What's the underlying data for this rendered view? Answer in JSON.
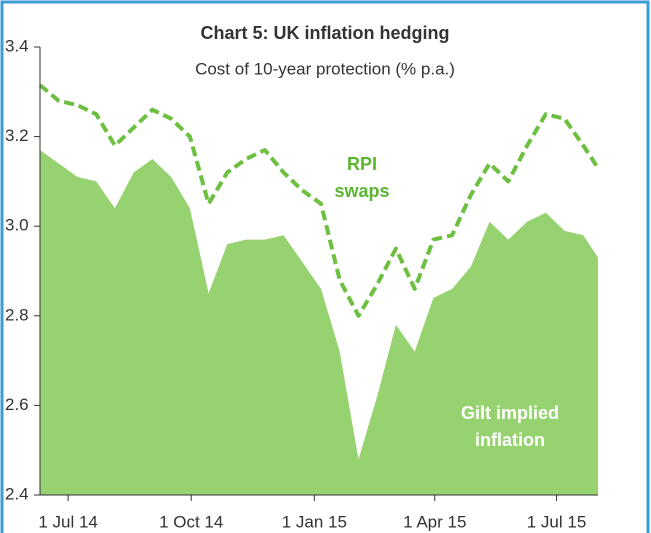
{
  "chart_data": {
    "type": "area_line",
    "title": "Chart 5: UK inflation hedging",
    "subtitle": "Cost of 10-year protection (% p.a.)",
    "x": [
      "2014-06-10",
      "2014-06-24",
      "2014-07-08",
      "2014-07-22",
      "2014-08-05",
      "2014-08-19",
      "2014-09-02",
      "2014-09-16",
      "2014-09-30",
      "2014-10-14",
      "2014-10-28",
      "2014-11-11",
      "2014-11-25",
      "2014-12-09",
      "2014-12-23",
      "2015-01-06",
      "2015-01-20",
      "2015-02-03",
      "2015-02-17",
      "2015-03-03",
      "2015-03-17",
      "2015-03-31",
      "2015-04-14",
      "2015-04-28",
      "2015-05-12",
      "2015-05-26",
      "2015-06-09",
      "2015-06-23",
      "2015-07-07",
      "2015-07-21",
      "2015-08-01"
    ],
    "series": [
      {
        "kind": "area",
        "color": "#97d271",
        "values": [
          3.17,
          3.14,
          3.11,
          3.1,
          3.04,
          3.12,
          3.15,
          3.11,
          3.04,
          2.85,
          2.96,
          2.97,
          2.97,
          2.98,
          2.92,
          2.86,
          2.72,
          2.48,
          2.62,
          2.78,
          2.72,
          2.84,
          2.86,
          2.91,
          3.01,
          2.97,
          3.01,
          3.03,
          2.99,
          2.98,
          2.93
        ]
      },
      {
        "kind": "dashed-line",
        "color": "#6cbf3f",
        "values": [
          3.315,
          3.28,
          3.27,
          3.25,
          3.18,
          3.22,
          3.26,
          3.24,
          3.2,
          3.05,
          3.12,
          3.15,
          3.17,
          3.12,
          3.08,
          3.05,
          2.88,
          2.8,
          2.87,
          2.95,
          2.86,
          2.97,
          2.98,
          3.07,
          3.14,
          3.1,
          3.18,
          3.25,
          3.24,
          3.18,
          3.13
        ]
      }
    ],
    "annotations": [
      {
        "lines": [
          "RPI",
          "swaps"
        ],
        "color": "#5cb531"
      },
      {
        "lines": [
          "Gilt implied",
          "inflation"
        ],
        "color": "#ffffff"
      }
    ],
    "xlim": [
      "2014-06-10",
      "2015-08-01"
    ],
    "xticks": [
      {
        "value": "2014-07-01",
        "label": "1 Jul 14"
      },
      {
        "value": "2014-10-01",
        "label": "1 Oct 14"
      },
      {
        "value": "2015-01-01",
        "label": "1 Jan 15"
      },
      {
        "value": "2015-04-01",
        "label": "1 Apr 15"
      },
      {
        "value": "2015-07-01",
        "label": "1 Jul 15"
      }
    ],
    "ylim": [
      2.4,
      3.4
    ],
    "yticks": [
      {
        "value": 2.4,
        "label": "2.4"
      },
      {
        "value": 2.6,
        "label": "2.6"
      },
      {
        "value": 2.8,
        "label": "2.8"
      },
      {
        "value": 3.0,
        "label": "3.0"
      },
      {
        "value": 3.2,
        "label": "3.2"
      },
      {
        "value": 3.4,
        "label": "3.4"
      }
    ]
  }
}
